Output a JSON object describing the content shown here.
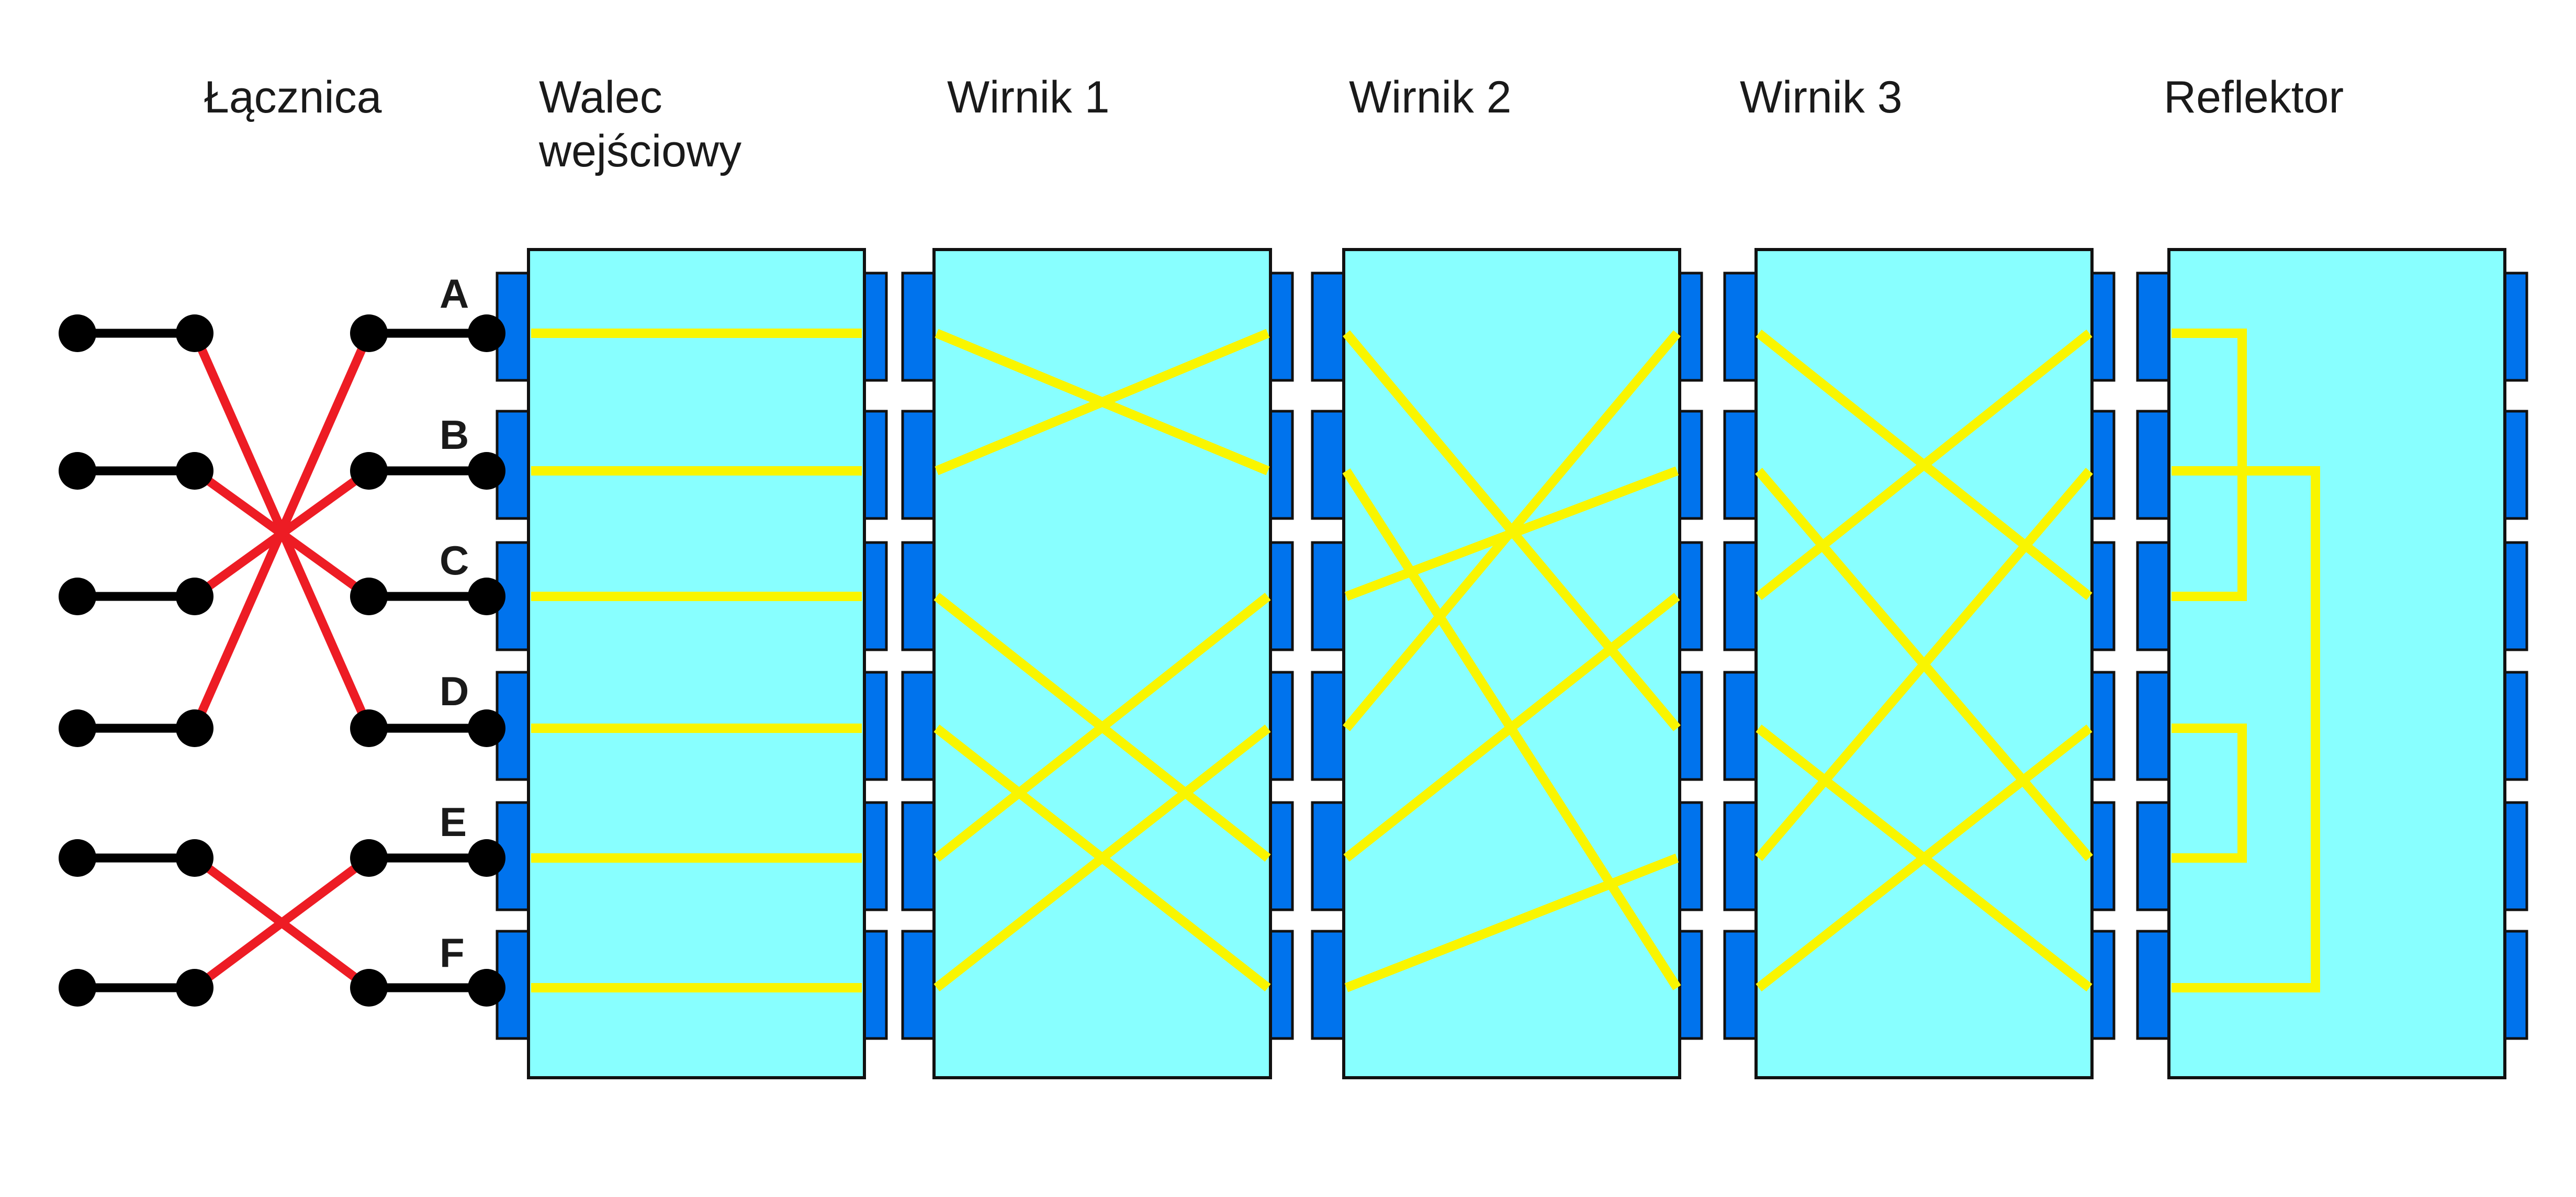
{
  "labels": {
    "plugboard": "Łącznica",
    "entry_line1": "Walec",
    "entry_line2": "wejściowy",
    "rotor1": "Wirnik 1",
    "rotor2": "Wirnik 2",
    "rotor3": "Wirnik 3",
    "reflector": "Reflektor"
  },
  "pins": [
    "A",
    "B",
    "C",
    "D",
    "E",
    "F"
  ],
  "plugboard_swaps": [
    [
      0,
      3
    ],
    [
      1,
      2
    ],
    [
      4,
      5
    ]
  ],
  "entry_wiring": [
    0,
    1,
    2,
    3,
    4,
    5
  ],
  "rotor1_wiring": [
    1,
    0,
    4,
    5,
    2,
    3
  ],
  "rotor2_wiring": [
    3,
    5,
    1,
    0,
    2,
    4
  ],
  "rotor3_wiring": [
    2,
    4,
    0,
    5,
    1,
    3
  ],
  "reflector_pairs": [
    [
      0,
      2
    ],
    [
      1,
      5
    ],
    [
      3,
      4
    ]
  ],
  "colors": {
    "box_fill": "#88ffff",
    "contact_fill": "#0073ed",
    "wire": "#f9f500",
    "plug_cable": "#ed1c24",
    "plug_line": "#000000"
  }
}
